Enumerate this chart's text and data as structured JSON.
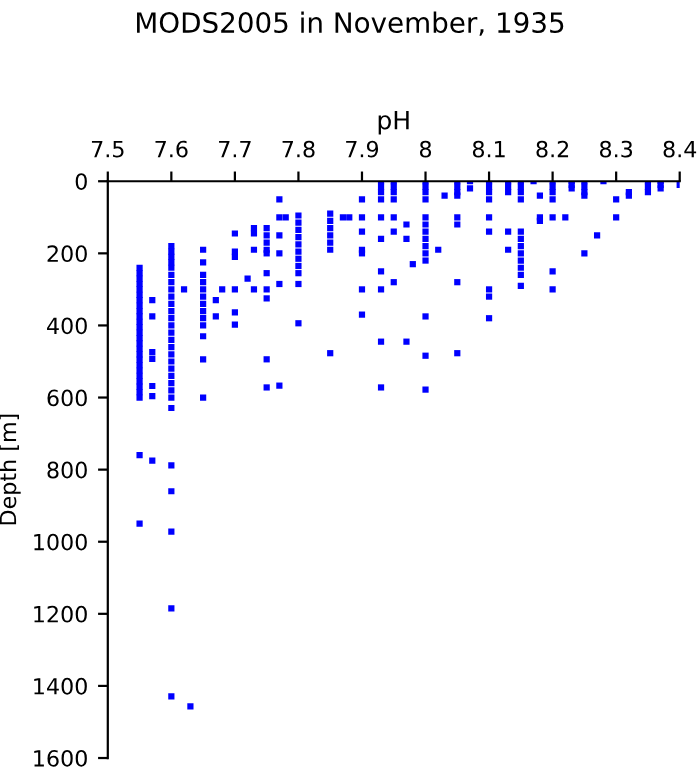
{
  "chart_data": {
    "type": "scatter",
    "title": "MODS2005 in November, 1935",
    "xlabel": "pH",
    "ylabel": "Depth [m]",
    "xlim": [
      7.5,
      8.4
    ],
    "xticks": [
      7.5,
      7.6,
      7.7,
      7.8,
      7.9,
      8,
      8.1,
      8.2,
      8.3,
      8.4
    ],
    "ylim": [
      1600,
      0
    ],
    "yticks": [
      0,
      200,
      400,
      600,
      800,
      1000,
      1200,
      1400,
      1600
    ],
    "marker": "square",
    "grid": false,
    "legend": false,
    "series": [
      {
        "color": "#0000ff",
        "x": [
          7.55,
          7.55,
          7.55,
          7.55,
          7.55,
          7.55,
          7.55,
          7.55,
          7.55,
          7.55,
          7.55,
          7.55,
          7.55,
          7.55,
          7.55,
          7.55,
          7.55,
          7.55,
          7.55,
          7.55,
          7.55,
          7.55,
          7.55,
          7.55,
          7.55,
          7.55,
          7.55,
          7.57,
          7.57,
          7.57,
          7.57,
          7.57,
          7.57,
          7.57,
          7.6,
          7.6,
          7.6,
          7.6,
          7.6,
          7.6,
          7.6,
          7.6,
          7.6,
          7.6,
          7.6,
          7.6,
          7.6,
          7.6,
          7.6,
          7.6,
          7.6,
          7.6,
          7.6,
          7.6,
          7.6,
          7.6,
          7.6,
          7.6,
          7.6,
          7.6,
          7.6,
          7.6,
          7.6,
          7.62,
          7.63,
          7.65,
          7.65,
          7.65,
          7.65,
          7.65,
          7.65,
          7.65,
          7.65,
          7.65,
          7.65,
          7.65,
          7.65,
          7.65,
          7.67,
          7.67,
          7.68,
          7.7,
          7.7,
          7.7,
          7.7,
          7.7,
          7.7,
          7.72,
          7.73,
          7.73,
          7.73,
          7.73,
          7.75,
          7.75,
          7.75,
          7.75,
          7.75,
          7.75,
          7.75,
          7.75,
          7.75,
          7.75,
          7.77,
          7.77,
          7.77,
          7.77,
          7.77,
          7.77,
          7.78,
          7.8,
          7.8,
          7.8,
          7.8,
          7.8,
          7.8,
          7.8,
          7.8,
          7.8,
          7.8,
          7.8,
          7.85,
          7.85,
          7.85,
          7.85,
          7.85,
          7.85,
          7.85,
          7.87,
          7.88,
          7.9,
          7.9,
          7.9,
          7.9,
          7.9,
          7.9,
          7.9,
          7.93,
          7.93,
          7.93,
          7.93,
          7.93,
          7.93,
          7.93,
          7.93,
          7.93,
          7.93,
          7.95,
          7.95,
          7.95,
          7.95,
          7.95,
          7.95,
          7.95,
          7.97,
          7.97,
          7.97,
          7.98,
          8.0,
          8.0,
          8.0,
          8.0,
          8.0,
          8.0,
          8.0,
          8.0,
          8.0,
          8.0,
          8.0,
          8.0,
          8.0,
          8.0,
          8.02,
          8.03,
          8.05,
          8.05,
          8.05,
          8.05,
          8.05,
          8.05,
          8.05,
          8.05,
          8.07,
          8.07,
          8.1,
          8.1,
          8.1,
          8.1,
          8.1,
          8.1,
          8.1,
          8.1,
          8.1,
          8.13,
          8.13,
          8.13,
          8.13,
          8.13,
          8.15,
          8.15,
          8.15,
          8.15,
          8.15,
          8.15,
          8.15,
          8.15,
          8.15,
          8.15,
          8.15,
          8.15,
          8.17,
          8.18,
          8.18,
          8.18,
          8.2,
          8.2,
          8.2,
          8.2,
          8.2,
          8.2,
          8.2,
          8.22,
          8.23,
          8.23,
          8.23,
          8.25,
          8.25,
          8.25,
          8.25,
          8.25,
          8.27,
          8.28,
          8.3,
          8.3,
          8.32,
          8.32,
          8.35,
          8.35,
          8.35,
          8.37,
          8.37,
          8.37,
          8.4
        ],
        "values": [
          240,
          255,
          270,
          285,
          300,
          315,
          330,
          345,
          360,
          375,
          390,
          405,
          420,
          435,
          450,
          465,
          480,
          495,
          510,
          525,
          540,
          555,
          570,
          585,
          600,
          760,
          950,
          330,
          375,
          474,
          493,
          568,
          596,
          775,
          180,
          195,
          210,
          225,
          240,
          260,
          280,
          300,
          320,
          340,
          360,
          380,
          400,
          420,
          440,
          460,
          480,
          500,
          520,
          540,
          560,
          580,
          600,
          629,
          788,
          860,
          972,
          1185,
          1429,
          300,
          1457,
          190,
          225,
          260,
          280,
          300,
          320,
          340,
          360,
          380,
          400,
          430,
          494,
          600,
          330,
          375,
          300,
          145,
          195,
          210,
          300,
          364,
          398,
          270,
          130,
          145,
          190,
          300,
          130,
          150,
          170,
          190,
          200,
          255,
          300,
          325,
          494,
          572,
          50,
          100,
          150,
          200,
          285,
          567,
          100,
          95,
          115,
          135,
          155,
          175,
          195,
          215,
          235,
          255,
          285,
          394,
          90,
          110,
          130,
          150,
          170,
          190,
          477,
          100,
          100,
          50,
          100,
          140,
          190,
          200,
          300,
          370,
          0,
          15,
          30,
          50,
          100,
          160,
          250,
          300,
          445,
          572,
          0,
          15,
          30,
          50,
          100,
          140,
          280,
          120,
          160,
          445,
          230,
          0,
          15,
          30,
          50,
          100,
          120,
          140,
          160,
          180,
          200,
          220,
          375,
          484,
          578,
          190,
          40,
          0,
          15,
          30,
          40,
          100,
          120,
          280,
          477,
          0,
          20,
          0,
          15,
          30,
          50,
          100,
          140,
          300,
          320,
          380,
          0,
          15,
          30,
          140,
          190,
          0,
          15,
          30,
          50,
          140,
          160,
          180,
          200,
          220,
          240,
          260,
          290,
          0,
          40,
          100,
          110,
          0,
          15,
          30,
          50,
          100,
          250,
          300,
          100,
          0,
          10,
          20,
          0,
          15,
          30,
          40,
          200,
          150,
          0,
          50,
          100,
          40,
          30,
          0,
          15,
          30,
          0,
          10,
          20,
          10
        ]
      }
    ]
  }
}
